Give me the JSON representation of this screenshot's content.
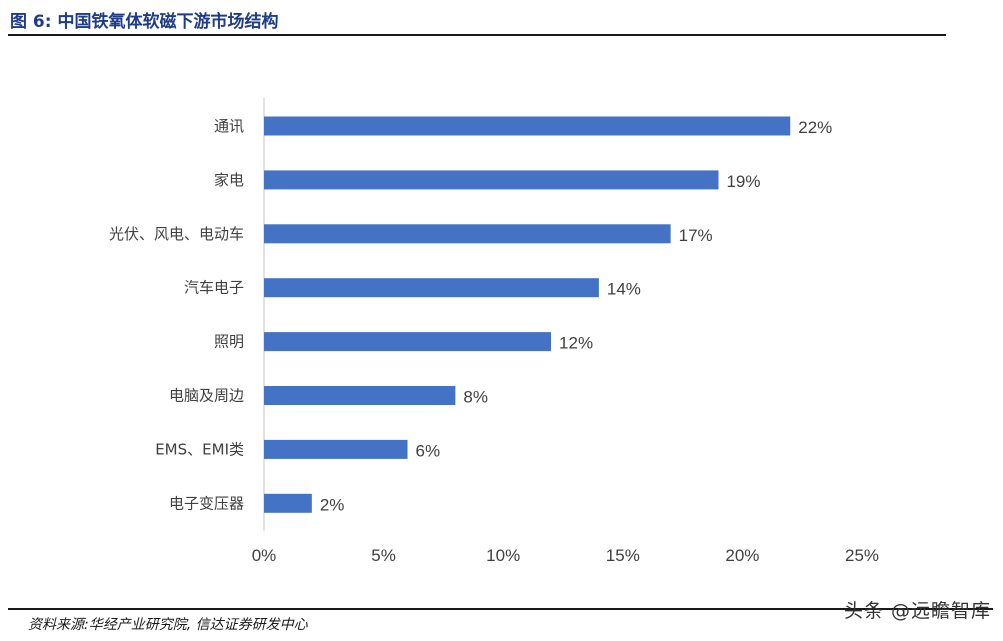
{
  "header": {
    "title": "图 6:  中国铁氧体软磁下游市场结构"
  },
  "footer": {
    "source": "资料来源:华经产业研究院, 信达证券研发中心"
  },
  "watermark": {
    "text": "头条 @远瞻智库"
  },
  "colors": {
    "bar": "#4472c4",
    "text": "#404040",
    "axis": "#d9d9d9"
  },
  "chart_data": {
    "type": "bar",
    "orientation": "horizontal",
    "categories": [
      "通讯",
      "家电",
      "光伏、风电、电动车",
      "汽车电子",
      "照明",
      "电脑及周边",
      "EMS、EMI类",
      "电子变压器"
    ],
    "values": [
      22,
      19,
      17,
      14,
      12,
      8,
      6,
      2
    ],
    "data_labels": [
      "22%",
      "19%",
      "17%",
      "14%",
      "12%",
      "8%",
      "6%",
      "2%"
    ],
    "xlim": [
      0,
      25
    ],
    "x_ticks": [
      0,
      5,
      10,
      15,
      20,
      25
    ],
    "x_tick_labels": [
      "0%",
      "5%",
      "10%",
      "15%",
      "20%",
      "25%"
    ],
    "grid": false,
    "legend": "none"
  }
}
